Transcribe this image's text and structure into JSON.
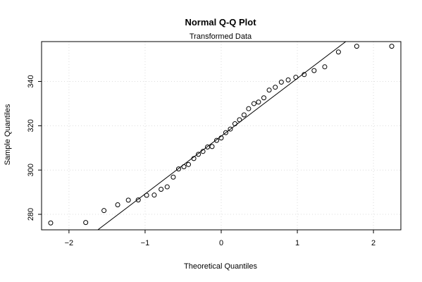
{
  "chart_data": {
    "type": "scatter",
    "title": "Normal Q-Q Plot",
    "subtitle": "Transformed Data",
    "xlabel": "Theoretical Quantiles",
    "ylabel": "Sample Quantiles",
    "xlim": [
      -2.36,
      2.36
    ],
    "ylim": [
      273,
      358
    ],
    "xticks": [
      -2,
      -1,
      0,
      1,
      2
    ],
    "xtick_labels": [
      "−2",
      "−1",
      "0",
      "1",
      "2"
    ],
    "yticks": [
      280,
      300,
      320,
      340
    ],
    "ytick_labels": [
      "280",
      "300",
      "320",
      "340"
    ],
    "grid": true,
    "reference_line": {
      "intercept": 315.3,
      "slope": 26.1
    },
    "x": [
      -2.24,
      -1.78,
      -1.54,
      -1.36,
      -1.22,
      -1.09,
      -0.98,
      -0.88,
      -0.79,
      -0.71,
      -0.63,
      -0.56,
      -0.49,
      -0.43,
      -0.36,
      -0.3,
      -0.24,
      -0.18,
      -0.12,
      -0.06,
      0.0,
      0.06,
      0.12,
      0.18,
      0.24,
      0.3,
      0.36,
      0.43,
      0.49,
      0.56,
      0.63,
      0.71,
      0.79,
      0.88,
      0.98,
      1.09,
      1.22,
      1.36,
      1.54,
      1.78,
      2.24
    ],
    "y": [
      276.1,
      276.3,
      281.7,
      284.3,
      286.4,
      286.5,
      288.6,
      288.7,
      291.3,
      292.4,
      296.8,
      300.5,
      301.5,
      302.5,
      305.2,
      307.1,
      308.4,
      310.4,
      310.6,
      313.4,
      314.5,
      316.9,
      318.5,
      320.9,
      322.7,
      324.9,
      327.7,
      330.0,
      330.7,
      332.6,
      336.1,
      337.4,
      339.7,
      340.7,
      341.9,
      343.1,
      344.9,
      346.6,
      353.3,
      355.9,
      355.9
    ]
  }
}
